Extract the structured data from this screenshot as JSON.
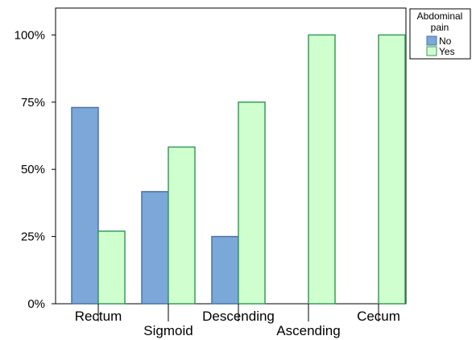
{
  "chart_data": {
    "type": "bar",
    "categories": [
      "Rectum",
      "Sigmoid",
      "Descending",
      "Ascending",
      "Cecum"
    ],
    "series": [
      {
        "name": "No",
        "values": [
          73,
          41.7,
          25,
          0,
          0
        ],
        "color": "#7ba7d9",
        "stroke": "#4a73a8"
      },
      {
        "name": "Yes",
        "values": [
          27,
          58.3,
          75,
          100,
          100
        ],
        "color": "#cfffcf",
        "stroke": "#3a9a5a"
      }
    ],
    "y_ticks": [
      "0%",
      "25%",
      "50%",
      "75%",
      "100%"
    ],
    "ylim": [
      0,
      110
    ],
    "legend": {
      "title_lines": [
        "Abdominal",
        "pain"
      ],
      "position": "top-right-outside"
    },
    "grid": false
  }
}
